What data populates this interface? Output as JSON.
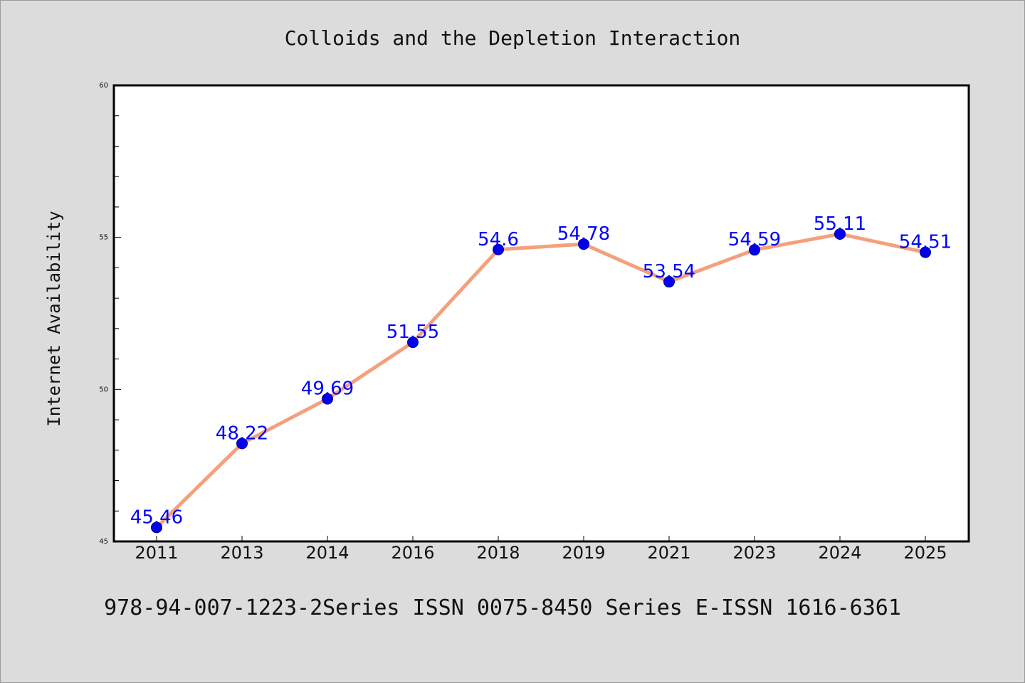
{
  "footer": "978-94-007-1223-2Series ISSN 0075-8450 Series E-ISSN 1616-6361",
  "colors": {
    "line": "#f4a07c",
    "marker": "#0000ee",
    "label": "#0000ff",
    "background": "#dcdcdc",
    "plot_bg": "#ffffff"
  },
  "chart_data": {
    "type": "line",
    "title": "Colloids and the Depletion Interaction",
    "xlabel": "",
    "ylabel": "Internet Availability",
    "categories": [
      "2011",
      "2013",
      "2014",
      "2016",
      "2018",
      "2019",
      "2021",
      "2023",
      "2024",
      "2025"
    ],
    "series": [
      {
        "values": [
          45.46,
          48.22,
          49.69,
          51.55,
          54.6,
          54.78,
          53.54,
          54.59,
          55.11,
          54.51
        ],
        "labels": [
          "45.46",
          "48.22",
          "49.69",
          "51.55",
          "54.6",
          "54.78",
          "53.54",
          "54.59",
          "55.11",
          "54.51"
        ]
      }
    ],
    "ylim": [
      45,
      60
    ],
    "yticks": [
      "45",
      "50",
      "55",
      "60"
    ],
    "grid": false,
    "legend": "none"
  }
}
